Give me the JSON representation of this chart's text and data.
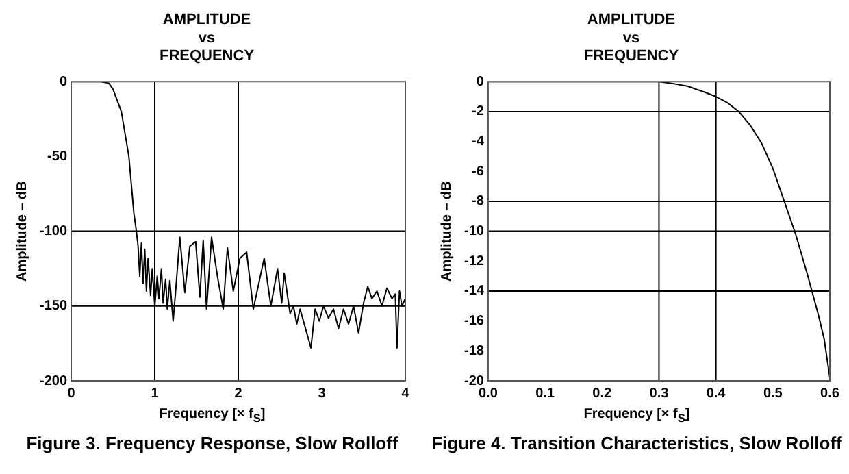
{
  "chart_data": [
    {
      "type": "line",
      "title": "AMPLITUDE\nvs\nFREQUENCY",
      "xlabel": "Frequency [× f$_{S}$]",
      "ylabel": "Amplitude – dB",
      "series": [
        {
          "color": "#000000",
          "x": [
            0,
            0.2,
            0.35,
            0.45,
            0.5,
            0.6,
            0.69,
            0.75,
            0.78,
            0.8,
            0.82,
            0.84,
            0.86,
            0.88,
            0.9,
            0.92,
            0.95,
            0.97,
            1.0,
            1.03,
            1.05,
            1.08,
            1.1,
            1.13,
            1.15,
            1.18,
            1.22,
            1.25,
            1.3,
            1.36,
            1.42,
            1.49,
            1.54,
            1.58,
            1.62,
            1.68,
            1.75,
            1.82,
            1.87,
            1.94,
            2.02,
            2.1,
            2.18,
            2.31,
            2.39,
            2.47,
            2.52,
            2.55,
            2.62,
            2.66,
            2.7,
            2.74,
            2.78,
            2.83,
            2.87,
            2.92,
            2.97,
            3.02,
            3.08,
            3.14,
            3.2,
            3.26,
            3.32,
            3.38,
            3.44,
            3.5,
            3.55,
            3.6,
            3.66,
            3.72,
            3.78,
            3.84,
            3.88,
            3.9,
            3.93,
            3.96,
            4.0
          ],
          "values": [
            0,
            0,
            0,
            -1,
            -5,
            -20,
            -50,
            -88,
            -100,
            -110,
            -130,
            -108,
            -135,
            -112,
            -140,
            -118,
            -143,
            -125,
            -150,
            -130,
            -145,
            -125,
            -148,
            -132,
            -152,
            -133,
            -160,
            -140,
            -104,
            -141,
            -110,
            -107,
            -144,
            -106,
            -152,
            -104,
            -130,
            -152,
            -111,
            -140,
            -118,
            -114,
            -152,
            -118,
            -150,
            -125,
            -148,
            -128,
            -155,
            -150,
            -162,
            -152,
            -160,
            -170,
            -178,
            -152,
            -160,
            -150,
            -158,
            -152,
            -165,
            -152,
            -162,
            -150,
            -168,
            -148,
            -137,
            -145,
            -140,
            -150,
            -138,
            -145,
            -142,
            -178,
            -140,
            -150,
            -145
          ]
        }
      ],
      "xlim": [
        0,
        4
      ],
      "xticks": [
        0,
        1,
        2,
        3,
        4
      ],
      "ylim": [
        -200,
        0
      ],
      "yticks": [
        -200,
        -150,
        -100,
        -50,
        0
      ],
      "ref_lines": [
        {
          "axis": "x",
          "value": 1
        },
        {
          "axis": "x",
          "value": 2
        },
        {
          "axis": "y",
          "value": -100
        },
        {
          "axis": "y",
          "value": -150
        }
      ],
      "annotations": [
        "Figure 3. Frequency Response, Slow Rolloff"
      ]
    },
    {
      "type": "line",
      "title": "AMPLITUDE\nvs\nFREQUENCY",
      "xlabel": "Frequency [× f$_{S}$]",
      "ylabel": "Amplitude – dB",
      "series": [
        {
          "color": "#000000",
          "x": [
            0,
            0.1,
            0.2,
            0.3,
            0.32,
            0.35,
            0.38,
            0.4,
            0.42,
            0.44,
            0.46,
            0.48,
            0.5,
            0.52,
            0.54,
            0.56,
            0.58,
            0.59,
            0.6
          ],
          "values": [
            0,
            0,
            0,
            0,
            -0.1,
            -0.3,
            -0.7,
            -1,
            -1.4,
            -2,
            -2.9,
            -4.1,
            -5.8,
            -8,
            -10.2,
            -12.8,
            -15.6,
            -17.2,
            -19.8
          ]
        }
      ],
      "xlim": [
        0,
        0.6
      ],
      "xticks": [
        {
          "value": 0,
          "label": "0.0"
        },
        0.1,
        0.2,
        0.3,
        0.4,
        0.5,
        0.6
      ],
      "ylim": [
        -20,
        0
      ],
      "yticks": [
        -20,
        -18,
        -16,
        -14,
        -12,
        -10,
        -8,
        -6,
        -4,
        -2,
        0
      ],
      "ref_lines": [
        {
          "axis": "x",
          "value": 0.3
        },
        {
          "axis": "x",
          "value": 0.4
        },
        {
          "axis": "y",
          "value": -2
        },
        {
          "axis": "y",
          "value": -8
        },
        {
          "axis": "y",
          "value": -10
        },
        {
          "axis": "y",
          "value": -14
        }
      ],
      "annotations": [
        "Figure 4. Transition Characteristics, Slow Rolloff"
      ]
    }
  ]
}
